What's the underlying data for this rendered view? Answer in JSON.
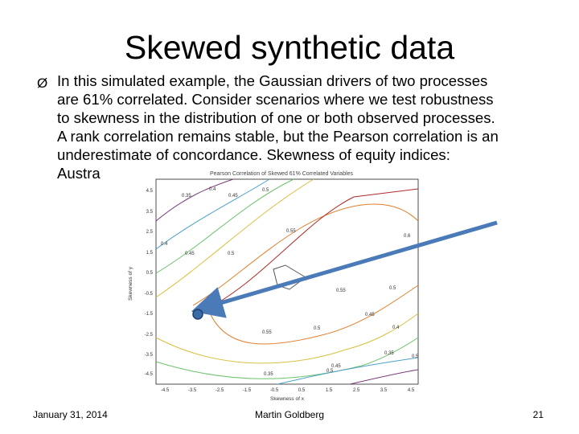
{
  "slide": {
    "title": "Skewed synthetic data",
    "bullet_symbol": "Ø",
    "body_lines": [
      "In this simulated example, the Gaussian drivers of two processes",
      "are 61% correlated.  Consider scenarios where we test robustness",
      "to skewness in the distribution of one or both observed processes.",
      "A rank correlation remains stable, but the Pearson correlation is an",
      "underestimate of concordance. Skewness of equity indices:",
      "Austra"
    ],
    "footer": {
      "date": "January 31, 2014",
      "author": "Martin Goldberg",
      "page": "21"
    }
  },
  "chart_data": {
    "type": "contour",
    "title": "Pearson Correlation of Skewed 61% Correlated Variables",
    "xlabel": "Skewness of x",
    "ylabel": "Skewness of y",
    "x_ticks": [
      "-4.5",
      "-3.5",
      "-2.5",
      "-1.5",
      "-0.5",
      "0.5",
      "1.5",
      "2.5",
      "3.5",
      "4.5"
    ],
    "y_ticks": [
      "4.5",
      "3.5",
      "2.5",
      "1.5",
      "0.5",
      "-0.5",
      "-1.5",
      "-2.5",
      "-3.5",
      "-4.5"
    ],
    "contour_labels": [
      "0.35",
      "0.4",
      "0.45",
      "0.5",
      "0.4",
      "0.45",
      "0.5",
      "0.55",
      "0.6",
      "0.55",
      "0.5",
      "0.45",
      "0.4",
      "0.35",
      "0.5",
      "0.45",
      "0.55",
      "0.5",
      "0.5",
      "0.35"
    ],
    "contour_colors": [
      "#7a3a7a",
      "#4aa0c8",
      "#6cc26c",
      "#d8c040",
      "#e08030",
      "#b02a2a"
    ],
    "arrow_color": "#4a7ab8",
    "marker_color": "#3a6aa8"
  }
}
